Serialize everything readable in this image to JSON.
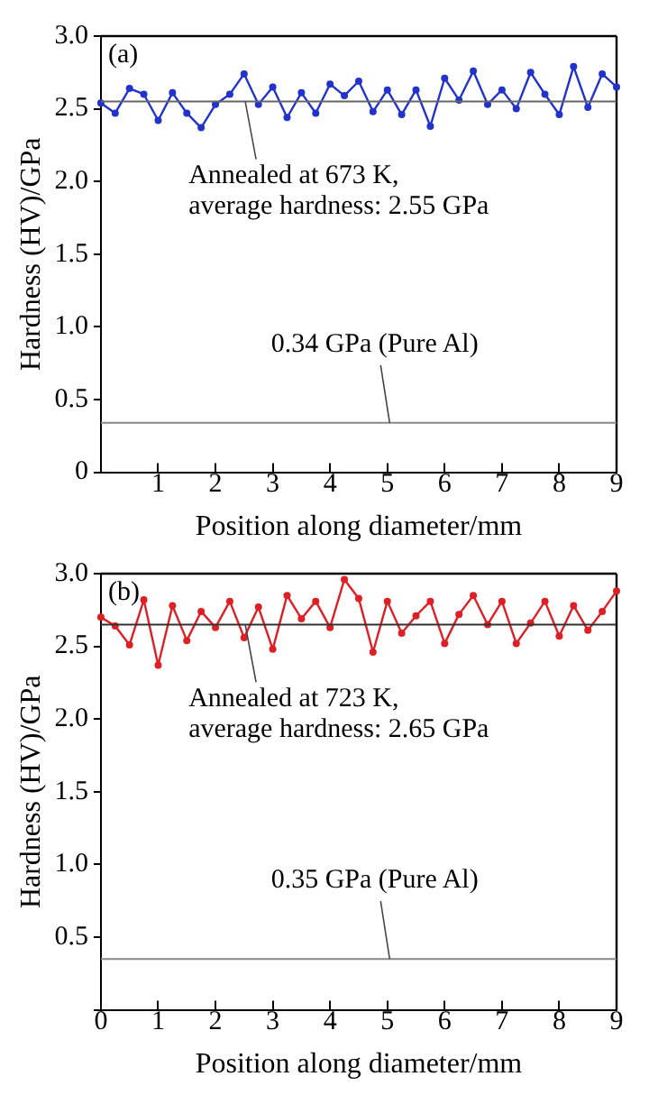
{
  "chart_data": [
    {
      "type": "line",
      "title": "(a)",
      "xlabel": "Position along diameter/mm",
      "ylabel": "Hardness (HV)/GPa",
      "marker": "circle",
      "line_style": "solid",
      "x": [
        0,
        0.25,
        0.5,
        0.75,
        1,
        1.25,
        1.5,
        1.75,
        2,
        2.25,
        2.5,
        2.75,
        3,
        3.25,
        3.5,
        3.75,
        4,
        4.25,
        4.5,
        4.75,
        5,
        5.25,
        5.5,
        5.75,
        6,
        6.25,
        6.5,
        6.75,
        7,
        7.25,
        7.5,
        7.75,
        8,
        8.25,
        8.5,
        8.75,
        9
      ],
      "series": [
        {
          "color": "#2233cc",
          "values": [
            2.54,
            2.47,
            2.64,
            2.6,
            2.42,
            2.61,
            2.47,
            2.37,
            2.53,
            2.6,
            2.74,
            2.53,
            2.65,
            2.44,
            2.61,
            2.47,
            2.67,
            2.59,
            2.69,
            2.48,
            2.63,
            2.46,
            2.63,
            2.38,
            2.71,
            2.56,
            2.76,
            2.53,
            2.63,
            2.5,
            2.75,
            2.6,
            2.46,
            2.79,
            2.51,
            2.74,
            2.65
          ]
        }
      ],
      "ref_lines": [
        {
          "axis": "y",
          "value": 2.55,
          "label": "Annealed at 673 K,\naverage hardness: 2.55 GPa",
          "color": "#666666"
        },
        {
          "axis": "y",
          "value": 0.34,
          "label": "0.34 GPa (Pure Al)",
          "color": "#888888"
        }
      ],
      "xlim": [
        0,
        9
      ],
      "xticks": [
        {
          "value": 0,
          "label": null
        },
        1,
        2,
        3,
        4,
        5,
        6,
        7,
        8,
        9
      ],
      "ylim": [
        0,
        3
      ],
      "yticks": [
        0,
        0.5,
        {
          "value": 1,
          "label": "1.0"
        },
        1.5,
        {
          "value": 2,
          "label": "2.0"
        },
        2.5,
        {
          "value": 3,
          "label": "3.0"
        }
      ]
    },
    {
      "type": "line",
      "title": "(b)",
      "xlabel": "Position along diameter/mm",
      "ylabel": "Hardness (HV)/GPa",
      "marker": "circle",
      "line_style": "solid",
      "x": [
        0,
        0.25,
        0.5,
        0.75,
        1,
        1.25,
        1.5,
        1.75,
        2,
        2.25,
        2.5,
        2.75,
        3,
        3.25,
        3.5,
        3.75,
        4,
        4.25,
        4.5,
        4.75,
        5,
        5.25,
        5.5,
        5.75,
        6,
        6.25,
        6.5,
        6.75,
        7,
        7.25,
        7.5,
        7.75,
        8,
        8.25,
        8.5,
        8.75,
        9
      ],
      "series": [
        {
          "color": "#dd1f26",
          "values": [
            2.7,
            2.64,
            2.51,
            2.82,
            2.37,
            2.78,
            2.54,
            2.74,
            2.63,
            2.81,
            2.56,
            2.77,
            2.48,
            2.85,
            2.69,
            2.81,
            2.63,
            2.96,
            2.83,
            2.46,
            2.81,
            2.59,
            2.71,
            2.81,
            2.52,
            2.72,
            2.85,
            2.65,
            2.81,
            2.52,
            2.66,
            2.81,
            2.57,
            2.78,
            2.61,
            2.74,
            2.88
          ]
        }
      ],
      "ref_lines": [
        {
          "axis": "y",
          "value": 2.65,
          "label": "Annealed at 723 K,\naverage hardness: 2.65 GPa",
          "color": "#333333"
        },
        {
          "axis": "y",
          "value": 0.35,
          "label": "0.35 GPa (Pure Al)",
          "color": "#888888"
        }
      ],
      "xlim": [
        0,
        9
      ],
      "xticks": [
        0,
        1,
        2,
        3,
        4,
        5,
        6,
        7,
        8,
        9
      ],
      "ylim": [
        0,
        3
      ],
      "yticks": [
        {
          "value": 0,
          "label": null
        },
        0.5,
        {
          "value": 1,
          "label": "1.0"
        },
        1.5,
        {
          "value": 2,
          "label": "2.0"
        },
        2.5,
        {
          "value": 3,
          "label": "3.0"
        }
      ]
    }
  ]
}
